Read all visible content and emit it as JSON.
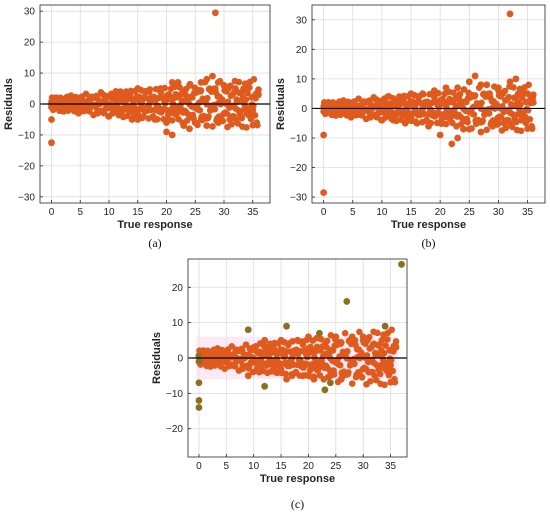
{
  "chart_data": [
    {
      "type": "scatter",
      "label": "(a)",
      "xlabel": "True response",
      "ylabel": "Residuals",
      "xlim": [
        -2,
        38
      ],
      "ylim": [
        -32,
        32
      ],
      "xticks": [
        0,
        5,
        10,
        15,
        20,
        25,
        30,
        35
      ],
      "yticks": [
        -30,
        -20,
        -10,
        0,
        10,
        20,
        30
      ],
      "grid": true,
      "zero_line": true,
      "color": "#E05A1E",
      "points": [
        [
          28.5,
          29.5
        ],
        [
          0,
          -12.5
        ],
        [
          0,
          -5
        ],
        [
          0,
          -1
        ],
        [
          0,
          0
        ],
        [
          1,
          0
        ],
        [
          2,
          1
        ],
        [
          3,
          -1
        ],
        [
          4,
          1
        ],
        [
          5,
          2
        ],
        [
          6,
          -2
        ],
        [
          7,
          2
        ],
        [
          8,
          -3
        ],
        [
          9,
          3
        ],
        [
          10,
          -4
        ],
        [
          11,
          3
        ],
        [
          12,
          -3
        ],
        [
          13,
          4
        ],
        [
          14,
          -5
        ],
        [
          15,
          5
        ],
        [
          16,
          -4
        ],
        [
          17,
          4
        ],
        [
          18,
          -5
        ],
        [
          19,
          5
        ],
        [
          20,
          -6
        ],
        [
          21,
          -10
        ],
        [
          22,
          7
        ],
        [
          23,
          -7
        ],
        [
          24,
          6
        ],
        [
          25,
          -6
        ],
        [
          26,
          7
        ],
        [
          27,
          -7
        ],
        [
          28,
          9
        ],
        [
          29,
          -6
        ],
        [
          30,
          6
        ],
        [
          31,
          -5
        ],
        [
          32,
          5
        ],
        [
          33,
          -4
        ],
        [
          34,
          4
        ],
        [
          35,
          -2
        ],
        [
          36,
          3
        ],
        [
          22,
          6
        ],
        [
          26,
          -5
        ],
        [
          29,
          7
        ],
        [
          24,
          -8
        ],
        [
          21,
          7
        ],
        [
          27,
          8
        ],
        [
          20,
          -9
        ],
        [
          12,
          4
        ],
        [
          15,
          -5
        ]
      ]
    },
    {
      "type": "scatter",
      "label": "(b)",
      "xlabel": "True response",
      "ylabel": "Residuals",
      "xlim": [
        -2,
        38
      ],
      "ylim": [
        -32,
        35
      ],
      "xticks": [
        0,
        5,
        10,
        15,
        20,
        25,
        30,
        35
      ],
      "yticks": [
        -30,
        -20,
        -10,
        0,
        10,
        20,
        30
      ],
      "grid": true,
      "zero_line": true,
      "color": "#E05A1E",
      "points": [
        [
          32,
          32
        ],
        [
          0,
          -28.5
        ],
        [
          0,
          -9
        ],
        [
          0,
          -1
        ],
        [
          1,
          0
        ],
        [
          2,
          1
        ],
        [
          3,
          -1
        ],
        [
          4,
          1
        ],
        [
          5,
          2
        ],
        [
          6,
          -2
        ],
        [
          7,
          2
        ],
        [
          8,
          -3
        ],
        [
          9,
          3
        ],
        [
          10,
          -4
        ],
        [
          11,
          4
        ],
        [
          12,
          -4
        ],
        [
          13,
          4
        ],
        [
          14,
          -5
        ],
        [
          15,
          5
        ],
        [
          16,
          -5
        ],
        [
          17,
          5
        ],
        [
          18,
          -6
        ],
        [
          19,
          6
        ],
        [
          20,
          -9
        ],
        [
          21,
          7
        ],
        [
          22,
          -12
        ],
        [
          23,
          7
        ],
        [
          24,
          -7
        ],
        [
          25,
          9
        ],
        [
          26,
          11
        ],
        [
          27,
          -8
        ],
        [
          28,
          8
        ],
        [
          29,
          -6
        ],
        [
          30,
          7
        ],
        [
          31,
          -5
        ],
        [
          32,
          9
        ],
        [
          33,
          10
        ],
        [
          34,
          -4
        ],
        [
          35,
          5
        ],
        [
          36,
          2
        ],
        [
          25,
          -7
        ],
        [
          27,
          8
        ],
        [
          23,
          -10
        ],
        [
          30,
          -5
        ]
      ]
    },
    {
      "type": "scatter",
      "label": "(c)",
      "xlabel": "True response",
      "ylabel": "Residuals",
      "xlim": [
        -2,
        38
      ],
      "ylim": [
        -28,
        28
      ],
      "xticks": [
        0,
        5,
        10,
        15,
        20,
        25,
        30,
        35
      ],
      "yticks": [
        -20,
        -10,
        0,
        10,
        20
      ],
      "grid": true,
      "zero_line": true,
      "color": "#E05A1E",
      "outlier_color": "#8B7020",
      "points": [
        [
          37,
          26.5
        ],
        [
          0,
          -12
        ],
        [
          0,
          -14
        ],
        [
          0,
          -7
        ],
        [
          0,
          -1
        ],
        [
          0,
          0.5
        ],
        [
          1,
          0
        ],
        [
          2,
          1
        ],
        [
          3,
          -1
        ],
        [
          4,
          1
        ],
        [
          5,
          2
        ],
        [
          6,
          -2
        ],
        [
          7,
          2
        ],
        [
          8,
          -3
        ],
        [
          9,
          8
        ],
        [
          9,
          -5
        ],
        [
          10,
          3
        ],
        [
          11,
          -4
        ],
        [
          12,
          -8
        ],
        [
          13,
          4
        ],
        [
          14,
          -4
        ],
        [
          15,
          5
        ],
        [
          16,
          9
        ],
        [
          17,
          -5
        ],
        [
          18,
          5
        ],
        [
          19,
          -5
        ],
        [
          20,
          6
        ],
        [
          21,
          -6
        ],
        [
          22,
          7
        ],
        [
          23,
          -9
        ],
        [
          24,
          -7
        ],
        [
          25,
          6
        ],
        [
          26,
          -6
        ],
        [
          27,
          16
        ],
        [
          28,
          6
        ],
        [
          29,
          -5
        ],
        [
          30,
          5
        ],
        [
          31,
          -4
        ],
        [
          32,
          4
        ],
        [
          33,
          -3
        ],
        [
          34,
          9
        ],
        [
          35,
          -2
        ],
        [
          36,
          3
        ],
        [
          24,
          -5
        ],
        [
          28,
          5
        ],
        [
          16,
          -6
        ],
        [
          12,
          5
        ]
      ]
    }
  ]
}
